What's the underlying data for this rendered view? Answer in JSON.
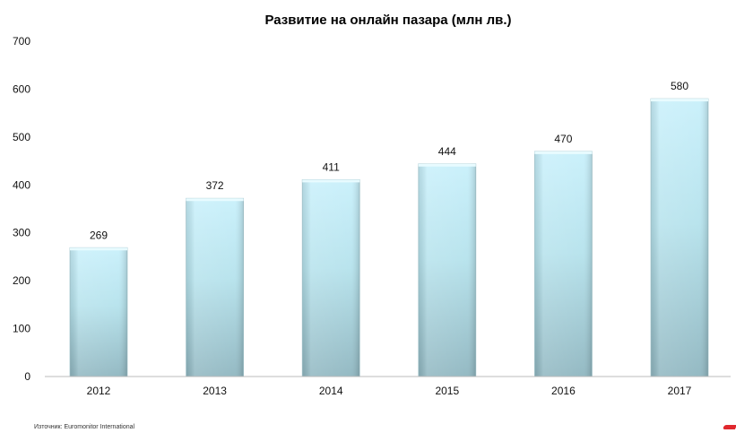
{
  "chart_data": {
    "type": "bar",
    "title": "Развитие на онлайн пазара (млн лв.)",
    "categories": [
      "2012",
      "2013",
      "2014",
      "2015",
      "2016",
      "2017"
    ],
    "values": [
      269,
      372,
      411,
      444,
      470,
      580
    ],
    "data_labels": [
      "269",
      "372",
      "411",
      "444",
      "470",
      "580"
    ],
    "y_ticks": [
      "0",
      "100",
      "200",
      "300",
      "400",
      "500",
      "600",
      "700"
    ],
    "ylim": [
      0,
      700
    ],
    "grid": false,
    "legend": "none",
    "bar_color_top": "#c8f0fb",
    "bar_color_bottom": "#8fb6c0"
  },
  "source": "Източник: Euromonitor International"
}
